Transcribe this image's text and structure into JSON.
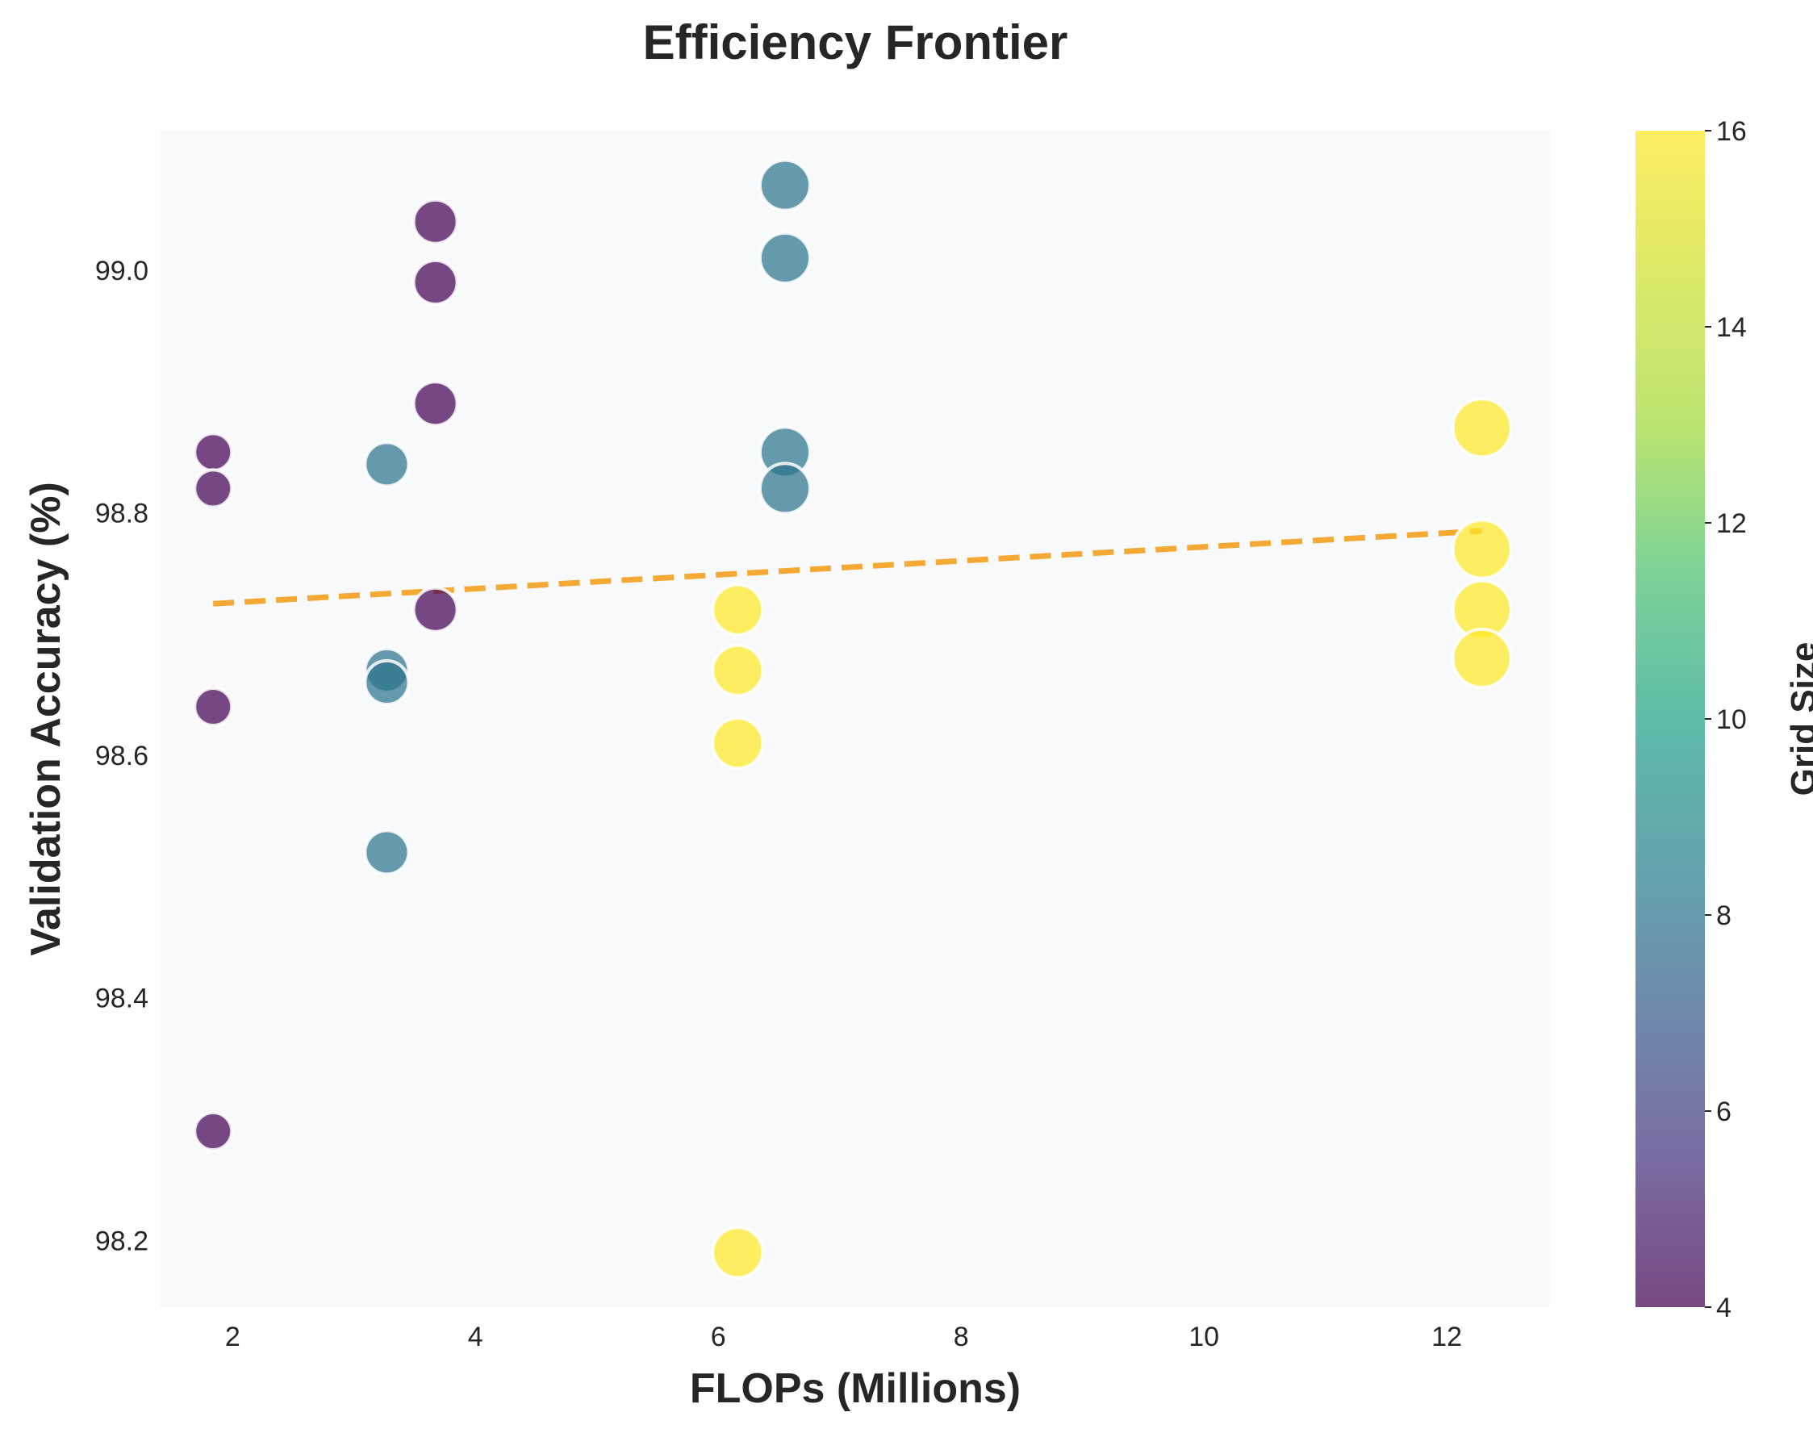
{
  "chart_data": {
    "type": "scatter",
    "title": "Efficiency Frontier",
    "xlabel": "FLOPs (Millions)",
    "ylabel": "Validation Accuracy (%)",
    "xlim": [
      1.4,
      12.85
    ],
    "ylim": [
      98.145,
      99.115
    ],
    "xticks": [
      2,
      4,
      6,
      8,
      10,
      12
    ],
    "yticks": [
      98.2,
      98.4,
      98.6,
      98.8,
      99.0
    ],
    "grid": false,
    "colorbar": {
      "label": "Grid Size",
      "range": [
        4,
        16
      ],
      "ticks": [
        4,
        6,
        8,
        10,
        12,
        14,
        16
      ],
      "colormap": "viridis"
    },
    "points": [
      {
        "x": 1.84,
        "y": 98.85,
        "c": 4
      },
      {
        "x": 1.84,
        "y": 98.82,
        "c": 4
      },
      {
        "x": 1.84,
        "y": 98.64,
        "c": 4
      },
      {
        "x": 1.84,
        "y": 98.29,
        "c": 4
      },
      {
        "x": 3.27,
        "y": 98.84,
        "c": 8
      },
      {
        "x": 3.27,
        "y": 98.67,
        "c": 8
      },
      {
        "x": 3.27,
        "y": 98.66,
        "c": 8
      },
      {
        "x": 3.27,
        "y": 98.52,
        "c": 8
      },
      {
        "x": 3.67,
        "y": 99.04,
        "c": 4
      },
      {
        "x": 3.67,
        "y": 98.99,
        "c": 4
      },
      {
        "x": 3.67,
        "y": 98.89,
        "c": 4
      },
      {
        "x": 3.67,
        "y": 98.72,
        "c": 4
      },
      {
        "x": 6.16,
        "y": 98.72,
        "c": 16
      },
      {
        "x": 6.16,
        "y": 98.67,
        "c": 16
      },
      {
        "x": 6.16,
        "y": 98.61,
        "c": 16
      },
      {
        "x": 6.16,
        "y": 98.19,
        "c": 16
      },
      {
        "x": 6.55,
        "y": 99.07,
        "c": 8
      },
      {
        "x": 6.55,
        "y": 99.01,
        "c": 8
      },
      {
        "x": 6.55,
        "y": 98.85,
        "c": 8
      },
      {
        "x": 6.55,
        "y": 98.82,
        "c": 8
      },
      {
        "x": 12.29,
        "y": 98.87,
        "c": 16
      },
      {
        "x": 12.29,
        "y": 98.77,
        "c": 16
      },
      {
        "x": 12.29,
        "y": 98.72,
        "c": 16
      },
      {
        "x": 12.29,
        "y": 98.68,
        "c": 16
      }
    ],
    "trendline": {
      "style": "dashed",
      "color": "#f39c12",
      "x": [
        1.84,
        12.29
      ],
      "y": [
        98.725,
        98.785
      ]
    },
    "colors": {
      "plot_background": "#f8f9fa",
      "marker_edge": "#ffffff"
    }
  }
}
